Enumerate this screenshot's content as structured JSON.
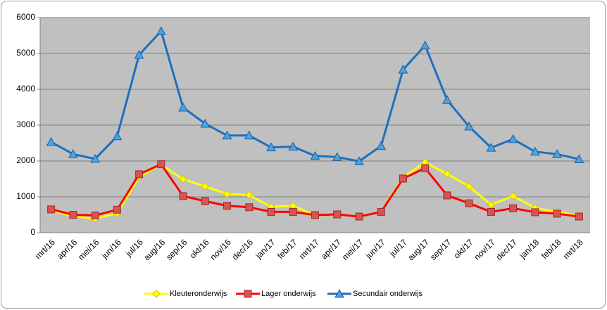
{
  "chart_data": {
    "type": "line",
    "categories": [
      "mrt/16",
      "apr/16",
      "mei/16",
      "jun/16",
      "jul/16",
      "aug/16",
      "sep/16",
      "okt/16",
      "nov/16",
      "dec/16",
      "jan/17",
      "feb/17",
      "mrt/17",
      "apr/17",
      "mei/17",
      "jun/17",
      "jul/17",
      "aug/17",
      "sep/17",
      "okt/17",
      "nov/17",
      "dec/17",
      "jan/18",
      "feb/18",
      "mrt/18"
    ],
    "series": [
      {
        "name": "Kleuteronderwijs",
        "color": "#ffff00",
        "marker": "diamond",
        "values": [
          620,
          460,
          390,
          540,
          1560,
          1900,
          1490,
          1290,
          1080,
          1050,
          720,
          750,
          480,
          510,
          450,
          580,
          1550,
          1960,
          1640,
          1290,
          780,
          1020,
          690,
          580,
          480
        ]
      },
      {
        "name": "Lager onderwijs",
        "color": "#ff0000",
        "marker": "square",
        "values": [
          650,
          500,
          480,
          640,
          1630,
          1910,
          1020,
          880,
          750,
          710,
          580,
          580,
          490,
          510,
          450,
          580,
          1510,
          1800,
          1040,
          820,
          580,
          680,
          570,
          530,
          450
        ]
      },
      {
        "name": "Secundair onderwijs",
        "color": "#1f6fbf",
        "marker": "triangle",
        "values": [
          2530,
          2190,
          2060,
          2690,
          4960,
          5620,
          3490,
          3040,
          2710,
          2710,
          2380,
          2400,
          2140,
          2110,
          1990,
          2420,
          4550,
          5220,
          3700,
          2960,
          2370,
          2610,
          2260,
          2190,
          2050
        ]
      }
    ],
    "ylim": [
      0,
      6000
    ],
    "yticks": [
      0,
      1000,
      2000,
      3000,
      4000,
      5000,
      6000
    ],
    "grid": true,
    "legend": "bottom"
  }
}
